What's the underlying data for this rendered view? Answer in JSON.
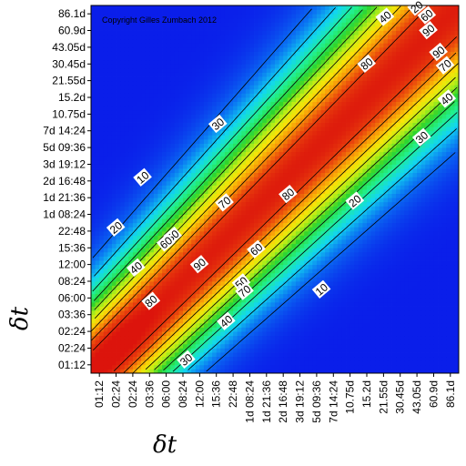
{
  "chart_data": {
    "type": "heatmap",
    "title": "",
    "copyright": "Copyright Gilles Zumbach 2012",
    "xlabel": "δt",
    "ylabel": "δt",
    "ticks": [
      "01:12",
      "02:24",
      "02:24",
      "03:36",
      "06:00",
      "08:24",
      "12:00",
      "15:36",
      "22:48",
      "1d 08:24",
      "1d 21:36",
      "2d 16:48",
      "3d 19:12",
      "5d 09:36",
      "7d 14:24",
      "10.75d",
      "15.2d",
      "21.55d",
      "30.45d",
      "43.05d",
      "60.9d",
      "86.1d"
    ],
    "value_range": [
      0,
      100
    ],
    "contour_levels": [
      10,
      20,
      30,
      40,
      50,
      60,
      70,
      80,
      90
    ],
    "colormap": [
      "#0a1eea",
      "#0a6cf2",
      "#12d7ef",
      "#22f08c",
      "#2ed42c",
      "#b6ee18",
      "#f8e408",
      "#f89a08",
      "#e8400c",
      "#dc140c"
    ],
    "contour_labels": [
      {
        "text": "10",
        "x": 2.6,
        "y": 11.2
      },
      {
        "text": "20",
        "x": 1.0,
        "y": 8.2
      },
      {
        "text": "30",
        "x": 7.1,
        "y": 14.4
      },
      {
        "text": "40",
        "x": 2.2,
        "y": 5.8
      },
      {
        "text": "50",
        "x": 4.4,
        "y": 7.7
      },
      {
        "text": "60",
        "x": 4.0,
        "y": 7.3
      },
      {
        "text": "70",
        "x": 7.5,
        "y": 9.7
      },
      {
        "text": "80",
        "x": 3.1,
        "y": 3.8
      },
      {
        "text": "90",
        "x": 6.0,
        "y": 6.0
      },
      {
        "text": "30",
        "x": 5.2,
        "y": 0.3
      },
      {
        "text": "40",
        "x": 7.6,
        "y": 2.6
      },
      {
        "text": "50",
        "x": 8.5,
        "y": 4.9
      },
      {
        "text": "60",
        "x": 9.4,
        "y": 6.9
      },
      {
        "text": "70",
        "x": 8.7,
        "y": 4.4
      },
      {
        "text": "80",
        "x": 11.3,
        "y": 10.2
      },
      {
        "text": "80",
        "x": 16.0,
        "y": 18.0
      },
      {
        "text": "90",
        "x": 19.7,
        "y": 20.0
      },
      {
        "text": "90",
        "x": 20.3,
        "y": 18.7
      },
      {
        "text": "70",
        "x": 20.7,
        "y": 17.9
      },
      {
        "text": "60",
        "x": 19.6,
        "y": 20.9
      },
      {
        "text": "40",
        "x": 17.1,
        "y": 20.8
      },
      {
        "text": "20",
        "x": 19.0,
        "y": 21.4
      },
      {
        "text": "40",
        "x": 20.8,
        "y": 15.9
      },
      {
        "text": "30",
        "x": 19.3,
        "y": 13.6
      },
      {
        "text": "20",
        "x": 15.3,
        "y": 9.8
      },
      {
        "text": "10",
        "x": 13.3,
        "y": 4.5
      }
    ],
    "grid": false,
    "legend": "none"
  }
}
